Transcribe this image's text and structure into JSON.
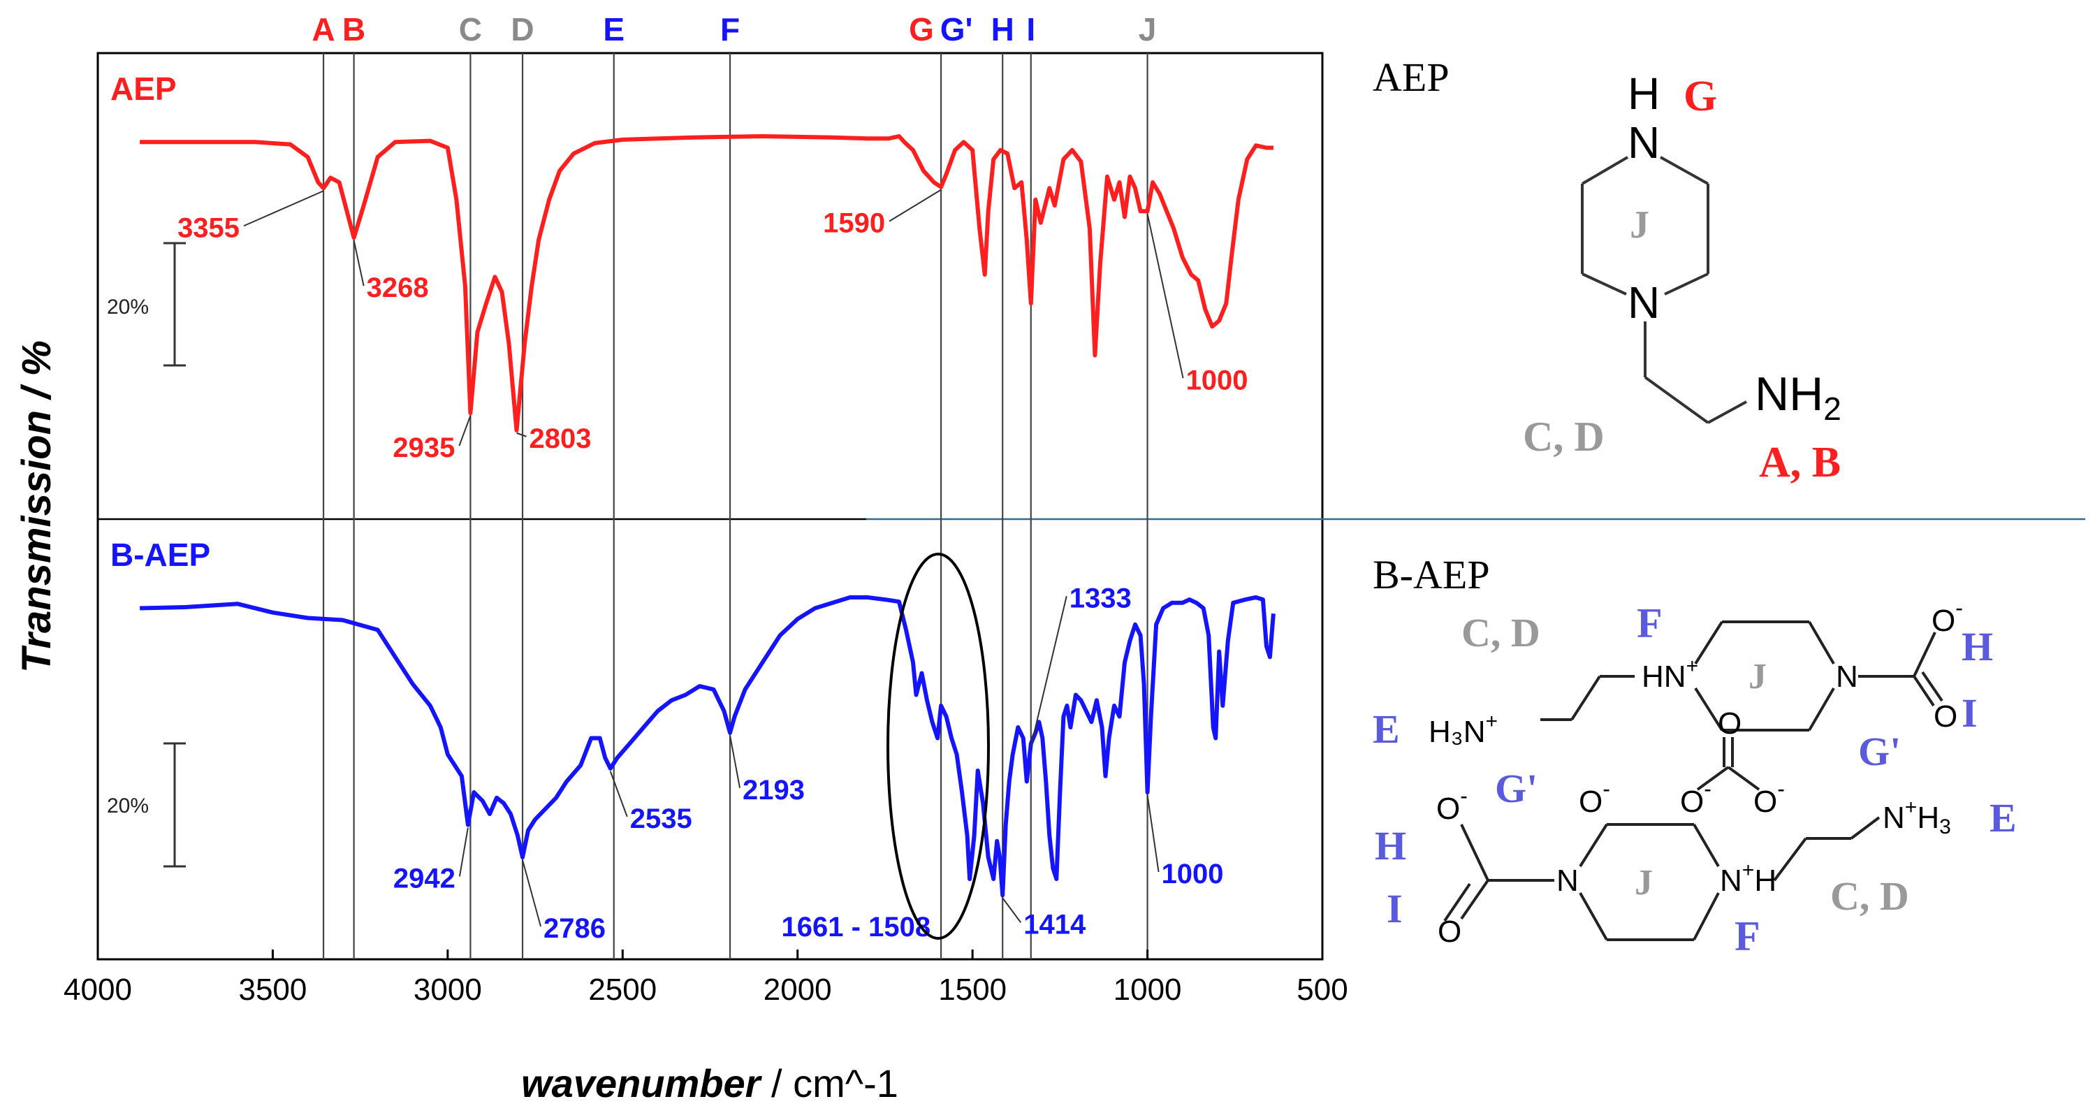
{
  "chart_data": {
    "type": "line",
    "xlabel_main": "wavenumber",
    "xlabel_unit": " / cm^-1",
    "ylabel": "Transmission / %",
    "xlim": [
      4000,
      500
    ],
    "x_ticks": [
      "4000",
      "3500",
      "3000",
      "2500",
      "2000",
      "1500",
      "1000",
      "500"
    ],
    "x_tick_values": [
      4000,
      3500,
      3000,
      2500,
      2000,
      1500,
      1000,
      500
    ],
    "scale_bar_label": "20%",
    "colors": {
      "AEP": "#ff1f1f",
      "B-AEP": "#1414ff",
      "ref_gray": "#8a8a8a",
      "frame": "#000000"
    },
    "reference_lines": [
      {
        "label": "A",
        "x": 3355,
        "color": "#ff1f1f"
      },
      {
        "label": "B",
        "x": 3268,
        "color": "#ff1f1f"
      },
      {
        "label": "C",
        "x": 2935,
        "color": "#8a8a8a"
      },
      {
        "label": "D",
        "x": 2786,
        "color": "#8a8a8a"
      },
      {
        "label": "E",
        "x": 2525,
        "color": "#1414ff"
      },
      {
        "label": "F",
        "x": 2193,
        "color": "#1414ff"
      },
      {
        "label": "G",
        "x": 1590,
        "color": "#ff1f1f",
        "show_line": false
      },
      {
        "label": "G'",
        "x": 1590,
        "color": "#1414ff"
      },
      {
        "label": "H",
        "x": 1414,
        "color": "#1414ff"
      },
      {
        "label": "I",
        "x": 1333,
        "color": "#1414ff"
      },
      {
        "label": "J",
        "x": 1000,
        "color": "#8a8a8a"
      }
    ],
    "series": [
      {
        "name": "AEP",
        "points": [
          [
            3880,
            0.05
          ],
          [
            3700,
            0.05
          ],
          [
            3550,
            0.05
          ],
          [
            3450,
            0.07
          ],
          [
            3400,
            0.18
          ],
          [
            3370,
            0.4
          ],
          [
            3355,
            0.45
          ],
          [
            3335,
            0.36
          ],
          [
            3310,
            0.4
          ],
          [
            3268,
            0.88
          ],
          [
            3240,
            0.6
          ],
          [
            3200,
            0.18
          ],
          [
            3150,
            0.05
          ],
          [
            3050,
            0.04
          ],
          [
            3000,
            0.1
          ],
          [
            2975,
            0.55
          ],
          [
            2950,
            1.3
          ],
          [
            2935,
            2.4
          ],
          [
            2915,
            1.7
          ],
          [
            2890,
            1.45
          ],
          [
            2865,
            1.22
          ],
          [
            2845,
            1.35
          ],
          [
            2825,
            1.8
          ],
          [
            2803,
            2.55
          ],
          [
            2780,
            1.8
          ],
          [
            2760,
            1.3
          ],
          [
            2740,
            0.9
          ],
          [
            2710,
            0.55
          ],
          [
            2680,
            0.3
          ],
          [
            2640,
            0.15
          ],
          [
            2580,
            0.06
          ],
          [
            2500,
            0.03
          ],
          [
            2300,
            0.01
          ],
          [
            2100,
            0.0
          ],
          [
            1900,
            0.01
          ],
          [
            1800,
            0.02
          ],
          [
            1740,
            0.02
          ],
          [
            1710,
            0.0
          ],
          [
            1695,
            0.05
          ],
          [
            1670,
            0.12
          ],
          [
            1640,
            0.3
          ],
          [
            1610,
            0.4
          ],
          [
            1590,
            0.44
          ],
          [
            1575,
            0.33
          ],
          [
            1550,
            0.12
          ],
          [
            1525,
            0.05
          ],
          [
            1500,
            0.12
          ],
          [
            1480,
            0.8
          ],
          [
            1465,
            1.2
          ],
          [
            1455,
            0.65
          ],
          [
            1440,
            0.2
          ],
          [
            1420,
            0.12
          ],
          [
            1400,
            0.15
          ],
          [
            1380,
            0.45
          ],
          [
            1360,
            0.4
          ],
          [
            1345,
            0.9
          ],
          [
            1333,
            1.45
          ],
          [
            1320,
            0.55
          ],
          [
            1305,
            0.75
          ],
          [
            1280,
            0.45
          ],
          [
            1265,
            0.6
          ],
          [
            1240,
            0.2
          ],
          [
            1215,
            0.12
          ],
          [
            1190,
            0.22
          ],
          [
            1165,
            0.8
          ],
          [
            1150,
            1.9
          ],
          [
            1135,
            1.1
          ],
          [
            1115,
            0.35
          ],
          [
            1095,
            0.55
          ],
          [
            1080,
            0.4
          ],
          [
            1065,
            0.7
          ],
          [
            1050,
            0.35
          ],
          [
            1035,
            0.45
          ],
          [
            1020,
            0.65
          ],
          [
            1000,
            0.65
          ],
          [
            985,
            0.4
          ],
          [
            965,
            0.5
          ],
          [
            945,
            0.65
          ],
          [
            925,
            0.8
          ],
          [
            900,
            1.05
          ],
          [
            875,
            1.2
          ],
          [
            855,
            1.25
          ],
          [
            835,
            1.5
          ],
          [
            815,
            1.65
          ],
          [
            795,
            1.6
          ],
          [
            775,
            1.45
          ],
          [
            760,
            1.05
          ],
          [
            740,
            0.55
          ],
          [
            715,
            0.2
          ],
          [
            690,
            0.08
          ],
          [
            660,
            0.1
          ],
          [
            640,
            0.1
          ]
        ]
      },
      {
        "name": "B-AEP",
        "points": [
          [
            3880,
            0.1
          ],
          [
            3750,
            0.09
          ],
          [
            3600,
            0.06
          ],
          [
            3500,
            0.14
          ],
          [
            3400,
            0.19
          ],
          [
            3300,
            0.21
          ],
          [
            3200,
            0.3
          ],
          [
            3150,
            0.55
          ],
          [
            3100,
            0.8
          ],
          [
            3050,
            1.0
          ],
          [
            3020,
            1.2
          ],
          [
            3000,
            1.45
          ],
          [
            2980,
            1.55
          ],
          [
            2960,
            1.65
          ],
          [
            2942,
            2.1
          ],
          [
            2925,
            1.8
          ],
          [
            2900,
            1.88
          ],
          [
            2880,
            2.0
          ],
          [
            2860,
            1.85
          ],
          [
            2840,
            1.9
          ],
          [
            2820,
            2.0
          ],
          [
            2800,
            2.2
          ],
          [
            2786,
            2.4
          ],
          [
            2770,
            2.15
          ],
          [
            2750,
            2.05
          ],
          [
            2720,
            1.95
          ],
          [
            2690,
            1.85
          ],
          [
            2660,
            1.7
          ],
          [
            2620,
            1.55
          ],
          [
            2590,
            1.3
          ],
          [
            2565,
            1.3
          ],
          [
            2550,
            1.48
          ],
          [
            2535,
            1.58
          ],
          [
            2515,
            1.48
          ],
          [
            2480,
            1.35
          ],
          [
            2440,
            1.2
          ],
          [
            2400,
            1.05
          ],
          [
            2360,
            0.95
          ],
          [
            2320,
            0.9
          ],
          [
            2280,
            0.82
          ],
          [
            2240,
            0.85
          ],
          [
            2210,
            1.05
          ],
          [
            2193,
            1.25
          ],
          [
            2180,
            1.1
          ],
          [
            2150,
            0.85
          ],
          [
            2100,
            0.6
          ],
          [
            2050,
            0.35
          ],
          [
            2000,
            0.2
          ],
          [
            1950,
            0.1
          ],
          [
            1900,
            0.05
          ],
          [
            1850,
            0.0
          ],
          [
            1800,
            0.0
          ],
          [
            1750,
            0.02
          ],
          [
            1710,
            0.04
          ],
          [
            1690,
            0.3
          ],
          [
            1670,
            0.6
          ],
          [
            1661,
            0.9
          ],
          [
            1645,
            0.7
          ],
          [
            1630,
            0.95
          ],
          [
            1615,
            1.15
          ],
          [
            1600,
            1.3
          ],
          [
            1590,
            1.0
          ],
          [
            1575,
            1.1
          ],
          [
            1560,
            1.3
          ],
          [
            1545,
            1.45
          ],
          [
            1530,
            1.8
          ],
          [
            1515,
            2.2
          ],
          [
            1508,
            2.6
          ],
          [
            1495,
            2.2
          ],
          [
            1485,
            1.6
          ],
          [
            1470,
            1.9
          ],
          [
            1455,
            2.4
          ],
          [
            1440,
            2.6
          ],
          [
            1430,
            2.25
          ],
          [
            1422,
            2.4
          ],
          [
            1414,
            2.75
          ],
          [
            1405,
            2.1
          ],
          [
            1395,
            1.7
          ],
          [
            1385,
            1.45
          ],
          [
            1370,
            1.2
          ],
          [
            1355,
            1.3
          ],
          [
            1345,
            1.7
          ],
          [
            1333,
            1.35
          ],
          [
            1320,
            1.25
          ],
          [
            1310,
            1.15
          ],
          [
            1300,
            1.3
          ],
          [
            1290,
            1.7
          ],
          [
            1280,
            2.2
          ],
          [
            1270,
            2.5
          ],
          [
            1260,
            2.6
          ],
          [
            1250,
            1.8
          ],
          [
            1240,
            1.1
          ],
          [
            1230,
            1.0
          ],
          [
            1220,
            1.2
          ],
          [
            1205,
            0.9
          ],
          [
            1190,
            0.95
          ],
          [
            1175,
            1.05
          ],
          [
            1160,
            1.15
          ],
          [
            1145,
            0.95
          ],
          [
            1130,
            1.2
          ],
          [
            1120,
            1.65
          ],
          [
            1110,
            1.3
          ],
          [
            1095,
            1.0
          ],
          [
            1080,
            1.1
          ],
          [
            1065,
            0.6
          ],
          [
            1050,
            0.4
          ],
          [
            1035,
            0.25
          ],
          [
            1020,
            0.35
          ],
          [
            1010,
            0.8
          ],
          [
            1000,
            1.8
          ],
          [
            990,
            1.1
          ],
          [
            975,
            0.25
          ],
          [
            955,
            0.1
          ],
          [
            930,
            0.05
          ],
          [
            900,
            0.05
          ],
          [
            880,
            0.02
          ],
          [
            860,
            0.05
          ],
          [
            840,
            0.1
          ],
          [
            825,
            0.35
          ],
          [
            812,
            1.2
          ],
          [
            805,
            1.3
          ],
          [
            795,
            0.5
          ],
          [
            785,
            1.0
          ],
          [
            770,
            0.4
          ],
          [
            755,
            0.05
          ],
          [
            720,
            0.02
          ],
          [
            690,
            0.0
          ],
          [
            670,
            0.02
          ],
          [
            660,
            0.45
          ],
          [
            650,
            0.55
          ],
          [
            640,
            0.15
          ]
        ]
      }
    ],
    "annotations": [
      {
        "series": "AEP",
        "text": "3355",
        "x": 3355
      },
      {
        "series": "AEP",
        "text": "3268",
        "x": 3268
      },
      {
        "series": "AEP",
        "text": "2935",
        "x": 2935
      },
      {
        "series": "AEP",
        "text": "2803",
        "x": 2803
      },
      {
        "series": "AEP",
        "text": "1590",
        "x": 1590
      },
      {
        "series": "AEP",
        "text": "1000",
        "x": 1000
      },
      {
        "series": "B-AEP",
        "text": "1333",
        "x": 1333
      },
      {
        "series": "B-AEP",
        "text": "2942",
        "x": 2942
      },
      {
        "series": "B-AEP",
        "text": "2786",
        "x": 2786
      },
      {
        "series": "B-AEP",
        "text": "2535",
        "x": 2535
      },
      {
        "series": "B-AEP",
        "text": "2193",
        "x": 2193
      },
      {
        "series": "B-AEP",
        "text": "1661 - 1508",
        "x": 1590
      },
      {
        "series": "B-AEP",
        "text": "1414",
        "x": 1414
      },
      {
        "series": "B-AEP",
        "text": "1000",
        "x": 1000
      }
    ]
  },
  "structures": {
    "aep": {
      "title": "AEP",
      "H": "H",
      "N_top": "N",
      "N_bottom": "N",
      "NH": "NH",
      "sub2": "2",
      "ring_label": "J",
      "label_G": "G",
      "label_CD": "C, D",
      "label_AB": "A, B"
    },
    "baep": {
      "title": "B-AEP",
      "HN": "HN",
      "N": "N",
      "N2": "N",
      "H": "H",
      "H3N": "H₃N",
      "NH3": "N",
      "H3": "H",
      "sub3": "3",
      "O": "O",
      "plus": "+",
      "minus": "-",
      "ring_label": "J",
      "label_F": "F",
      "label_CD": "C, D",
      "label_E": "E",
      "label_H": "H",
      "label_I": "I",
      "label_Gp": "G'"
    }
  }
}
